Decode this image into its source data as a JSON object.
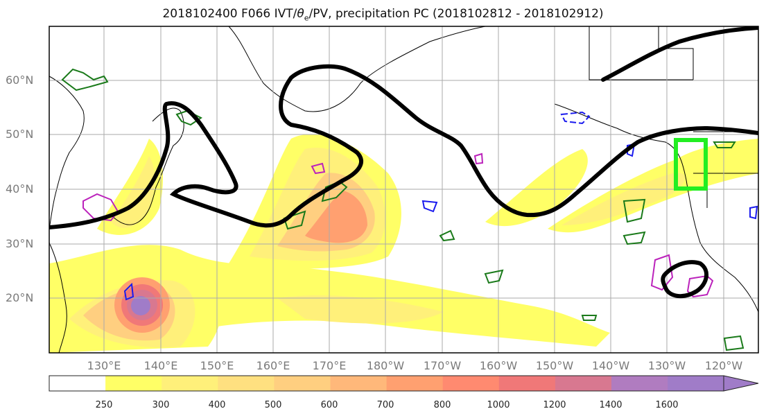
{
  "title_main": "2018102400 F066 IVT/",
  "title_theta": "θ",
  "title_theta_sub": "e",
  "title_rest": "/PV, precipitation PC (2018102812 - 2018102912)",
  "lat_labels": [
    "60°N",
    "50°N",
    "40°N",
    "30°N",
    "20°N"
  ],
  "lon_labels": [
    "130°E",
    "140°E",
    "150°E",
    "160°E",
    "170°E",
    "180°W",
    "170°W",
    "160°W",
    "150°W",
    "140°W",
    "130°W",
    "120°W"
  ],
  "colorbar": {
    "ticks": [
      "250",
      "300",
      "400",
      "500",
      "600",
      "700",
      "800",
      "1000",
      "1200",
      "1400",
      "1600"
    ],
    "colors": [
      "#ffff66",
      "#fff07a",
      "#ffe080",
      "#ffcf80",
      "#ffb87a",
      "#ffa070",
      "#ff8a70",
      "#f07878",
      "#d87890",
      "#b07cc0",
      "#a07cc8"
    ]
  },
  "colors": {
    "contour_black": "#000000",
    "contour_green": "#1a7a1a",
    "contour_blue": "#1a1aee",
    "contour_magenta": "#bb22bb",
    "box_bright_green": "#22ee22"
  }
}
